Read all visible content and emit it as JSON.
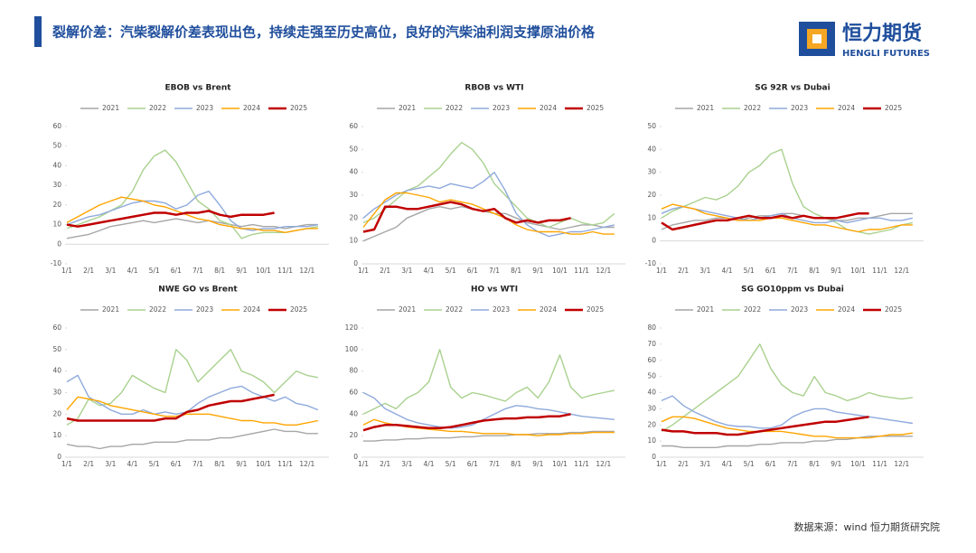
{
  "header": {
    "title": "裂解价差：汽柴裂解价差表现出色，持续走强至历史高位，良好的汽柴油利润支撑原油价格",
    "logo_cn": "恒力期货",
    "logo_en": "HENGLI FUTURES"
  },
  "footer": {
    "source": "数据来源：wind  恒力期货研究院"
  },
  "chart_data": [
    {
      "type": "line",
      "title": "EBOB vs Brent",
      "categories": [
        "1/1",
        null,
        "2/1",
        null,
        "3/1",
        null,
        "4/1",
        null,
        "5/1",
        null,
        "6/1",
        null,
        "7/1",
        null,
        "8/1",
        null,
        "9/1",
        null,
        "10/1",
        null,
        "11/1",
        null,
        "12/1",
        null
      ],
      "ylim": [
        -10,
        60
      ],
      "yticks": [
        -10,
        0,
        10,
        20,
        30,
        40,
        50,
        60
      ],
      "series": [
        {
          "name": "2021",
          "color": "#a6a6a6",
          "values": [
            3,
            4,
            5,
            7,
            9,
            10,
            11,
            12,
            11,
            12,
            13,
            12,
            11,
            12,
            11,
            10,
            9,
            10,
            9,
            9,
            8,
            9,
            10,
            10
          ]
        },
        {
          "name": "2022",
          "color": "#a9d18e",
          "values": [
            8,
            10,
            12,
            14,
            17,
            20,
            27,
            38,
            45,
            48,
            42,
            32,
            22,
            18,
            12,
            10,
            3,
            5,
            6,
            6,
            6,
            7,
            8,
            9
          ]
        },
        {
          "name": "2023",
          "color": "#8faadc",
          "values": [
            10,
            12,
            14,
            15,
            17,
            19,
            21,
            22,
            22,
            21,
            18,
            20,
            25,
            27,
            20,
            12,
            8,
            7,
            8,
            8,
            9,
            9,
            9,
            10
          ]
        },
        {
          "name": "2024",
          "color": "#ffa500",
          "values": [
            11,
            14,
            17,
            20,
            22,
            24,
            23,
            22,
            20,
            19,
            17,
            15,
            13,
            12,
            10,
            9,
            8,
            8,
            7,
            7,
            6,
            7,
            8,
            8
          ]
        },
        {
          "name": "2025",
          "color": "#c00000",
          "values": [
            10,
            9,
            10,
            11,
            12,
            13,
            14,
            15,
            16,
            16,
            15,
            16,
            16,
            17,
            15,
            14,
            15,
            15,
            15,
            16,
            null,
            null,
            null,
            null
          ]
        }
      ]
    },
    {
      "type": "line",
      "title": "RBOB vs WTI",
      "categories": [
        "1/1",
        null,
        "2/1",
        null,
        "3/1",
        null,
        "4/1",
        null,
        "5/1",
        null,
        "6/1",
        null,
        "7/1",
        null,
        "8/1",
        null,
        "9/1",
        null,
        "10/1",
        null,
        "11/1",
        null,
        "12/1",
        null
      ],
      "ylim": [
        0,
        60
      ],
      "yticks": [
        0,
        10,
        20,
        30,
        40,
        50,
        60
      ],
      "series": [
        {
          "name": "2021",
          "color": "#a6a6a6",
          "values": [
            10,
            12,
            14,
            16,
            20,
            22,
            24,
            25,
            24,
            25,
            24,
            23,
            22,
            22,
            20,
            18,
            17,
            16,
            15,
            16,
            17,
            17,
            16,
            16
          ]
        },
        {
          "name": "2022",
          "color": "#a9d18e",
          "values": [
            18,
            20,
            24,
            28,
            32,
            34,
            38,
            42,
            48,
            53,
            50,
            44,
            35,
            30,
            25,
            20,
            18,
            16,
            18,
            20,
            18,
            17,
            18,
            22
          ]
        },
        {
          "name": "2023",
          "color": "#8faadc",
          "values": [
            20,
            24,
            27,
            30,
            32,
            33,
            34,
            33,
            35,
            34,
            33,
            36,
            40,
            32,
            22,
            17,
            14,
            12,
            13,
            14,
            14,
            15,
            16,
            17
          ]
        },
        {
          "name": "2024",
          "color": "#ffa500",
          "values": [
            16,
            22,
            28,
            31,
            31,
            30,
            29,
            27,
            28,
            27,
            26,
            24,
            22,
            20,
            17,
            15,
            14,
            14,
            14,
            13,
            13,
            14,
            13,
            13
          ]
        },
        {
          "name": "2025",
          "color": "#c00000",
          "values": [
            14,
            15,
            25,
            25,
            24,
            24,
            25,
            26,
            27,
            26,
            24,
            23,
            24,
            20,
            18,
            19,
            18,
            19,
            19,
            20,
            null,
            null,
            null,
            null
          ]
        }
      ]
    },
    {
      "type": "line",
      "title": "SG 92R vs Dubai",
      "categories": [
        "1/1",
        null,
        "2/1",
        null,
        "3/1",
        null,
        "4/1",
        null,
        "5/1",
        null,
        "6/1",
        null,
        "7/1",
        null,
        "8/1",
        null,
        "9/1",
        null,
        "10/1",
        null,
        "11/1",
        null,
        "12/1",
        null
      ],
      "ylim": [
        -10,
        50
      ],
      "yticks": [
        -10,
        0,
        10,
        20,
        30,
        40,
        50
      ],
      "series": [
        {
          "name": "2021",
          "color": "#a6a6a6",
          "values": [
            5,
            7,
            8,
            9,
            9,
            10,
            10,
            9,
            10,
            11,
            11,
            12,
            12,
            11,
            10,
            10,
            9,
            9,
            10,
            10,
            11,
            12,
            12,
            12
          ]
        },
        {
          "name": "2022",
          "color": "#a9d18e",
          "values": [
            10,
            13,
            15,
            17,
            19,
            18,
            20,
            24,
            30,
            33,
            38,
            40,
            25,
            15,
            12,
            10,
            8,
            5,
            4,
            3,
            4,
            5,
            7,
            8
          ]
        },
        {
          "name": "2023",
          "color": "#8faadc",
          "values": [
            12,
            14,
            15,
            14,
            13,
            12,
            11,
            10,
            9,
            10,
            11,
            12,
            10,
            9,
            8,
            8,
            9,
            8,
            9,
            10,
            10,
            9,
            9,
            10
          ]
        },
        {
          "name": "2024",
          "color": "#ffa500",
          "values": [
            14,
            16,
            15,
            14,
            12,
            11,
            10,
            9,
            9,
            9,
            10,
            10,
            9,
            8,
            7,
            7,
            6,
            5,
            4,
            5,
            5,
            6,
            7,
            7
          ]
        },
        {
          "name": "2025",
          "color": "#c00000",
          "values": [
            8,
            5,
            6,
            7,
            8,
            9,
            9,
            10,
            11,
            10,
            10,
            11,
            10,
            11,
            10,
            10,
            10,
            11,
            12,
            12,
            null,
            null,
            null,
            null
          ]
        }
      ]
    },
    {
      "type": "line",
      "title": "NWE GO vs Brent",
      "categories": [
        "1/1",
        null,
        "2/1",
        null,
        "3/1",
        null,
        "4/1",
        null,
        "5/1",
        null,
        "6/1",
        null,
        "7/1",
        null,
        "8/1",
        null,
        "9/1",
        null,
        "10/1",
        null,
        "11/1",
        null,
        "12/1",
        null
      ],
      "ylim": [
        0,
        60
      ],
      "yticks": [
        0,
        10,
        20,
        30,
        40,
        50,
        60
      ],
      "series": [
        {
          "name": "2021",
          "color": "#a6a6a6",
          "values": [
            6,
            5,
            5,
            4,
            5,
            5,
            6,
            6,
            7,
            7,
            7,
            8,
            8,
            8,
            9,
            9,
            10,
            11,
            12,
            13,
            12,
            12,
            11,
            11
          ]
        },
        {
          "name": "2022",
          "color": "#a9d18e",
          "values": [
            15,
            18,
            27,
            24,
            25,
            30,
            38,
            35,
            32,
            30,
            50,
            45,
            35,
            40,
            45,
            50,
            40,
            38,
            35,
            30,
            35,
            40,
            38,
            37
          ]
        },
        {
          "name": "2023",
          "color": "#8faadc",
          "values": [
            35,
            38,
            28,
            25,
            22,
            20,
            20,
            22,
            20,
            21,
            20,
            21,
            25,
            28,
            30,
            32,
            33,
            30,
            28,
            26,
            28,
            25,
            24,
            22
          ]
        },
        {
          "name": "2024",
          "color": "#ffa500",
          "values": [
            22,
            28,
            27,
            26,
            24,
            23,
            22,
            21,
            20,
            19,
            19,
            20,
            20,
            20,
            19,
            18,
            17,
            17,
            16,
            16,
            15,
            15,
            16,
            17
          ]
        },
        {
          "name": "2025",
          "color": "#c00000",
          "values": [
            18,
            17,
            17,
            17,
            17,
            17,
            17,
            17,
            17,
            18,
            18,
            21,
            22,
            24,
            25,
            26,
            26,
            27,
            28,
            29,
            null,
            null,
            null,
            null
          ]
        }
      ]
    },
    {
      "type": "line",
      "title": "HO vs WTI",
      "categories": [
        "1/1",
        null,
        "2/1",
        null,
        "3/1",
        null,
        "4/1",
        null,
        "5/1",
        null,
        "6/1",
        null,
        "7/1",
        null,
        "8/1",
        null,
        "9/1",
        null,
        "10/1",
        null,
        "11/1",
        null,
        "12/1",
        null
      ],
      "ylim": [
        0,
        120
      ],
      "yticks": [
        0,
        20,
        40,
        60,
        80,
        100,
        120
      ],
      "series": [
        {
          "name": "2021",
          "color": "#a6a6a6",
          "values": [
            15,
            15,
            16,
            16,
            17,
            17,
            18,
            18,
            18,
            19,
            19,
            20,
            20,
            20,
            21,
            21,
            22,
            22,
            22,
            23,
            23,
            24,
            24,
            24
          ]
        },
        {
          "name": "2022",
          "color": "#a9d18e",
          "values": [
            40,
            45,
            50,
            45,
            55,
            60,
            70,
            100,
            65,
            55,
            60,
            58,
            55,
            52,
            60,
            65,
            55,
            70,
            95,
            65,
            55,
            58,
            60,
            62
          ]
        },
        {
          "name": "2023",
          "color": "#8faadc",
          "values": [
            60,
            55,
            45,
            40,
            35,
            32,
            30,
            28,
            27,
            28,
            30,
            35,
            40,
            45,
            48,
            47,
            45,
            44,
            42,
            40,
            38,
            37,
            36,
            35
          ]
        },
        {
          "name": "2024",
          "color": "#ffa500",
          "values": [
            30,
            35,
            32,
            30,
            28,
            27,
            26,
            25,
            24,
            24,
            23,
            22,
            22,
            22,
            21,
            21,
            20,
            21,
            21,
            22,
            22,
            23,
            23,
            23
          ]
        },
        {
          "name": "2025",
          "color": "#c00000",
          "values": [
            25,
            28,
            30,
            30,
            29,
            28,
            27,
            27,
            28,
            30,
            32,
            34,
            35,
            36,
            36,
            37,
            37,
            38,
            38,
            40,
            null,
            null,
            null,
            null
          ]
        }
      ]
    },
    {
      "type": "line",
      "title": "SG GO10ppm vs Dubai",
      "categories": [
        "1/1",
        null,
        "2/1",
        null,
        "3/1",
        null,
        "4/1",
        null,
        "5/1",
        null,
        "6/1",
        null,
        "7/1",
        null,
        "8/1",
        null,
        "9/1",
        null,
        "10/1",
        null,
        "11/1",
        null,
        "12/1",
        null
      ],
      "ylim": [
        0,
        80
      ],
      "yticks": [
        0,
        10,
        20,
        30,
        40,
        50,
        60,
        70,
        80
      ],
      "series": [
        {
          "name": "2021",
          "color": "#a6a6a6",
          "values": [
            7,
            7,
            6,
            6,
            6,
            6,
            7,
            7,
            7,
            8,
            8,
            9,
            9,
            9,
            10,
            10,
            11,
            11,
            12,
            13,
            13,
            13,
            13,
            13
          ]
        },
        {
          "name": "2022",
          "color": "#a9d18e",
          "values": [
            16,
            20,
            25,
            30,
            35,
            40,
            45,
            50,
            60,
            70,
            55,
            45,
            40,
            38,
            50,
            40,
            38,
            35,
            37,
            40,
            38,
            37,
            36,
            37
          ]
        },
        {
          "name": "2023",
          "color": "#8faadc",
          "values": [
            35,
            38,
            32,
            28,
            25,
            22,
            20,
            19,
            19,
            18,
            18,
            20,
            25,
            28,
            30,
            30,
            28,
            27,
            26,
            25,
            24,
            23,
            22,
            21
          ]
        },
        {
          "name": "2024",
          "color": "#ffa500",
          "values": [
            22,
            25,
            25,
            24,
            22,
            20,
            18,
            17,
            16,
            16,
            16,
            16,
            15,
            14,
            13,
            13,
            12,
            12,
            12,
            12,
            13,
            14,
            14,
            15
          ]
        },
        {
          "name": "2025",
          "color": "#c00000",
          "values": [
            17,
            16,
            16,
            15,
            15,
            15,
            14,
            14,
            15,
            16,
            17,
            18,
            19,
            20,
            21,
            22,
            22,
            23,
            24,
            25,
            null,
            null,
            null,
            null
          ]
        }
      ]
    }
  ]
}
